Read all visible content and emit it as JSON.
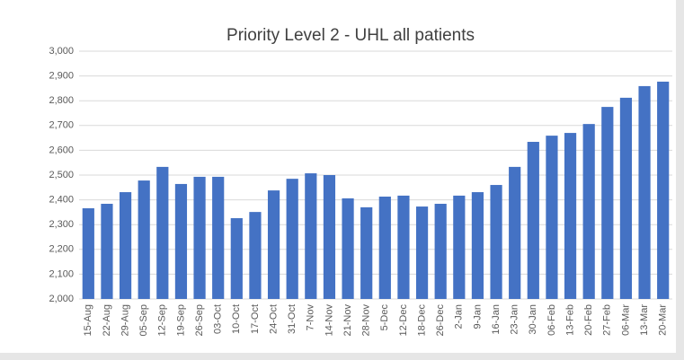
{
  "chart_data": {
    "type": "bar",
    "title": "Priority Level 2 - UHL all patients",
    "categories": [
      "15-Aug",
      "22-Aug",
      "29-Aug",
      "05-Sep",
      "12-Sep",
      "19-Sep",
      "26-Sep",
      "03-Oct",
      "10-Oct",
      "17-Oct",
      "24-Oct",
      "31-Oct",
      "7-Nov",
      "14-Nov",
      "21-Nov",
      "28-Nov",
      "5-Dec",
      "12-Dec",
      "18-Dec",
      "26-Dec",
      "2-Jan",
      "9-Jan",
      "16-Jan",
      "23-Jan",
      "30-Jan",
      "06-Feb",
      "13-Feb",
      "20-Feb",
      "27-Feb",
      "06-Mar",
      "13-Mar",
      "20-Mar"
    ],
    "values": [
      2366,
      2384,
      2431,
      2478,
      2533,
      2464,
      2493,
      2493,
      2326,
      2351,
      2438,
      2485,
      2507,
      2500,
      2406,
      2370,
      2413,
      2417,
      2373,
      2384,
      2417,
      2431,
      2460,
      2533,
      2634,
      2659,
      2670,
      2706,
      2775,
      2812,
      2859,
      2877
    ],
    "color": "#4472c4",
    "ylim": [
      2000,
      3000
    ],
    "yticks": [
      {
        "value": 2000,
        "label": "2,000"
      },
      {
        "value": 2100,
        "label": "2,100"
      },
      {
        "value": 2200,
        "label": "2,200"
      },
      {
        "value": 2300,
        "label": "2,300"
      },
      {
        "value": 2400,
        "label": "2,400"
      },
      {
        "value": 2500,
        "label": "2,500"
      },
      {
        "value": 2600,
        "label": "2,600"
      },
      {
        "value": 2700,
        "label": "2,700"
      },
      {
        "value": 2800,
        "label": "2,800"
      },
      {
        "value": 2900,
        "label": "2,900"
      },
      {
        "value": 3000,
        "label": "3,000"
      }
    ],
    "grid": true
  }
}
